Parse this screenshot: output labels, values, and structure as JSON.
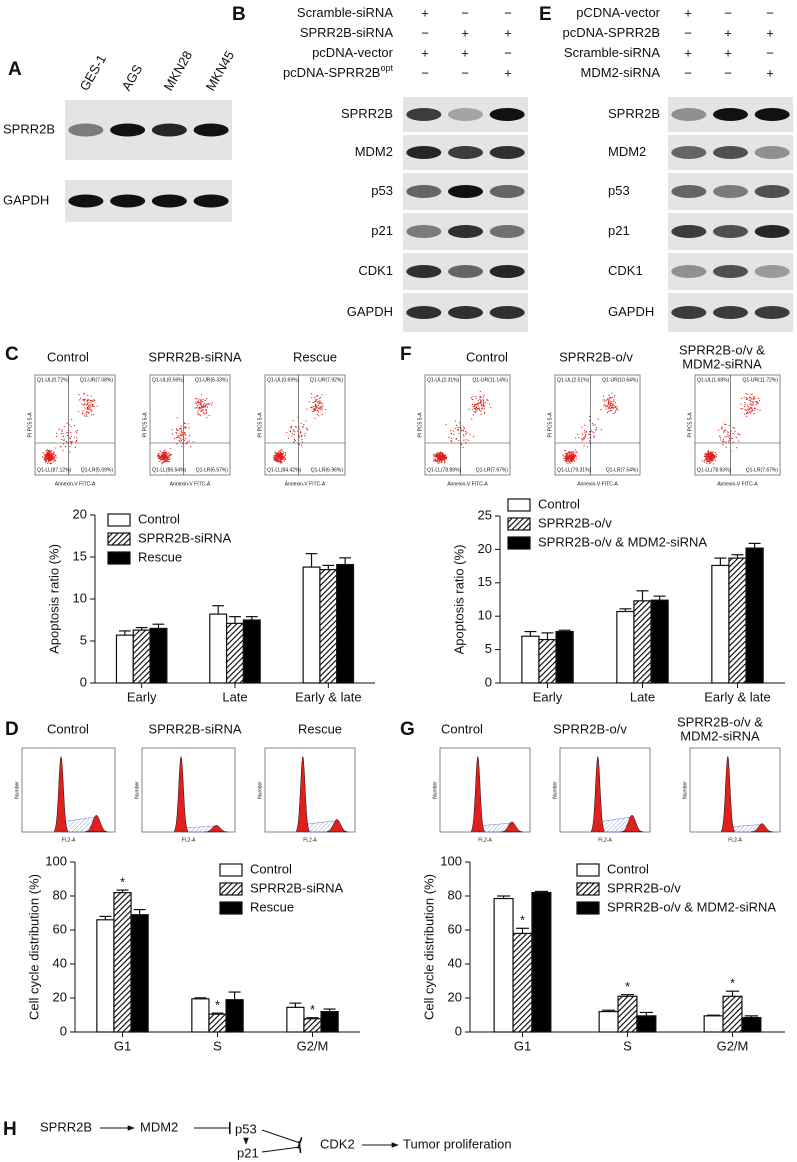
{
  "panels": {
    "A": {
      "label": "A",
      "lanes": [
        "GES-1",
        "AGS",
        "MKN28",
        "MKN45"
      ],
      "rows": [
        "SPRR2B",
        "GAPDH"
      ]
    },
    "B": {
      "label": "B",
      "treatments": [
        {
          "name": "Scramble-siRNA",
          "signs": [
            "+",
            "−",
            "−"
          ]
        },
        {
          "name": "SPRR2B-siRNA",
          "signs": [
            "−",
            "+",
            "+"
          ]
        },
        {
          "name": "pcDNA-vector",
          "signs": [
            "+",
            "+",
            "−"
          ]
        },
        {
          "name": "pcDNA-SPRR2B",
          "superscript": "opt",
          "signs": [
            "−",
            "−",
            "+"
          ]
        }
      ],
      "rows": [
        "SPRR2B",
        "MDM2",
        "p53",
        "p21",
        "CDK1",
        "GAPDH"
      ]
    },
    "E": {
      "label": "E",
      "treatments": [
        {
          "name": "pCDNA-vector",
          "signs": [
            "+",
            "−",
            "−"
          ]
        },
        {
          "name": "pcDNA-SPRR2B",
          "signs": [
            "−",
            "+",
            "+"
          ]
        },
        {
          "name": "Scramble-siRNA",
          "signs": [
            "+",
            "+",
            "−"
          ]
        },
        {
          "name": "MDM2-siRNA",
          "signs": [
            "−",
            "−",
            "+"
          ]
        }
      ],
      "rows": [
        "SPRR2B",
        "MDM2",
        "p53",
        "p21",
        "CDK1",
        "GAPDH"
      ]
    },
    "C": {
      "label": "C",
      "x_axis": "Annexin-V FITC-A",
      "y_axis": "PI PC5.5-A",
      "plots": [
        {
          "title": [
            "Control"
          ],
          "quadrants": [
            "Q1-UL(0.72%)",
            "Q1-UR(7.08%)",
            "Q1-LL(87.12%)",
            "Q1-LR(5.09%)"
          ]
        },
        {
          "title": [
            "SPRR2B-siRNA"
          ],
          "quadrants": [
            "Q1-UL(0.56%)",
            "Q1-UR(6.33%)",
            "Q1-LL(86.54%)",
            "Q1-LR(6.57%)"
          ]
        },
        {
          "title": [
            "Rescue"
          ],
          "quadrants": [
            "Q1-UL(0.69%)",
            "Q1-UR(7.92%)",
            "Q1-LL(84.42%)",
            "Q1-LR(6.96%)"
          ]
        }
      ]
    },
    "F": {
      "label": "F",
      "x_axis": "Annexin-V FITC-A",
      "y_axis": "PI PC5.5-A",
      "plots": [
        {
          "title": [
            "Control"
          ],
          "quadrants": [
            "Q1-UL(2.31%)",
            "Q1-UR(11.14%)",
            "Q1-LL(78.89%)",
            "Q1-LR(7.67%)"
          ]
        },
        {
          "title": [
            "SPRR2B-o/v"
          ],
          "quadrants": [
            "Q1-UL(2.51%)",
            "Q1-UR(10.64%)",
            "Q1-LL(79.31%)",
            "Q1-LR(7.54%)"
          ]
        },
        {
          "title": [
            "SPRR2B-o/v &",
            "MDM2-siRNA"
          ],
          "quadrants": [
            "Q1-UL(1.68%)",
            "Q1-UR(11.72%)",
            "Q1-LL(78.93%)",
            "Q1-LR(7.67%)"
          ]
        }
      ]
    },
    "D": {
      "label": "D",
      "x_axis": "FL2-A",
      "y_axis": "Number",
      "plots": [
        {
          "title": [
            "Control"
          ]
        },
        {
          "title": [
            "SPRR2B-siRNA"
          ]
        },
        {
          "title": [
            "Rescue"
          ]
        }
      ]
    },
    "G": {
      "label": "G",
      "x_axis": "FL2-A",
      "y_axis": "Number",
      "plots": [
        {
          "title": [
            "Control"
          ]
        },
        {
          "title": [
            "SPRR2B-o/v"
          ]
        },
        {
          "title": [
            "SPRR2B-o/v &",
            "MDM2-siRNA"
          ]
        }
      ]
    }
  },
  "chart_data": [
    {
      "type": "bar",
      "y_label": "Apoptosis ratio (%)",
      "categories": [
        "Early",
        "Late",
        "Early & late"
      ],
      "ylim": [
        0,
        20
      ],
      "yticks": [
        0,
        5,
        10,
        15,
        20
      ],
      "series": [
        {
          "name": "Control",
          "color": "#ffffff",
          "values": [
            5.7,
            8.2,
            13.8
          ],
          "errors": [
            0.5,
            1.0,
            1.6
          ]
        },
        {
          "name": "SPRR2B-siRNA",
          "color": "#000000",
          "pattern": "hatch",
          "values": [
            6.3,
            7.1,
            13.5
          ],
          "errors": [
            0.3,
            0.8,
            0.5
          ]
        },
        {
          "name": "Rescue",
          "color": "#000000",
          "values": [
            6.5,
            7.5,
            14.1
          ],
          "errors": [
            0.5,
            0.4,
            0.8
          ]
        }
      ]
    },
    {
      "type": "bar",
      "y_label": "Apoptosis ratio (%)",
      "categories": [
        "Early",
        "Late",
        "Early & late"
      ],
      "ylim": [
        0,
        25
      ],
      "yticks": [
        0,
        5,
        10,
        15,
        20,
        25
      ],
      "series": [
        {
          "name": "Control",
          "color": "#ffffff",
          "values": [
            7.0,
            10.7,
            17.6
          ],
          "errors": [
            0.7,
            0.4,
            1.1
          ]
        },
        {
          "name": "SPRR2B-o/v",
          "color": "#000000",
          "pattern": "hatch",
          "values": [
            6.5,
            12.3,
            18.7
          ],
          "errors": [
            1.0,
            1.5,
            0.5
          ]
        },
        {
          "name": "SPRR2B-o/v & MDM2-siRNA",
          "color": "#000000",
          "values": [
            7.7,
            12.4,
            20.2
          ],
          "errors": [
            0.2,
            0.6,
            0.7
          ]
        }
      ]
    },
    {
      "type": "bar",
      "y_label": "Cell cycle distribution (%)",
      "categories": [
        "G1",
        "S",
        "G2/M"
      ],
      "ylim": [
        0,
        100
      ],
      "yticks": [
        0,
        20,
        40,
        60,
        80,
        100
      ],
      "series": [
        {
          "name": "Control",
          "color": "#ffffff",
          "values": [
            66,
            19.5,
            14.5
          ],
          "errors": [
            2,
            0.6,
            2.5
          ]
        },
        {
          "name": "SPRR2B-siRNA",
          "color": "#000000",
          "pattern": "hatch",
          "values": [
            82,
            10.5,
            7.8
          ],
          "errors": [
            1.5,
            0.6,
            0.6
          ],
          "significance": [
            "*",
            "*",
            "*"
          ]
        },
        {
          "name": "Rescue",
          "color": "#000000",
          "values": [
            69,
            19,
            12
          ],
          "errors": [
            3,
            4.5,
            1.5
          ]
        }
      ]
    },
    {
      "type": "bar",
      "y_label": "Cell cycle distribution (%)",
      "categories": [
        "G1",
        "S",
        "G2/M"
      ],
      "ylim": [
        0,
        100
      ],
      "yticks": [
        0,
        20,
        40,
        60,
        80,
        100
      ],
      "series": [
        {
          "name": "Control",
          "color": "#ffffff",
          "values": [
            78.5,
            12,
            9.5
          ],
          "errors": [
            1.5,
            0.8,
            0.4
          ]
        },
        {
          "name": "SPRR2B-o/v",
          "color": "#000000",
          "pattern": "hatch",
          "values": [
            58,
            21,
            21
          ],
          "errors": [
            3,
            1,
            3
          ],
          "significance": [
            "*",
            "*",
            "*"
          ]
        },
        {
          "name": "SPRR2B-o/v & MDM2-siRNA",
          "color": "#000000",
          "values": [
            82,
            9.5,
            8.5
          ],
          "errors": [
            0.7,
            2,
            1
          ]
        }
      ]
    }
  ],
  "pathway": {
    "label": "H",
    "nodes": [
      "SPRR2B",
      "MDM2",
      "p53",
      "p21",
      "CDK2",
      "Tumor proliferation"
    ]
  }
}
